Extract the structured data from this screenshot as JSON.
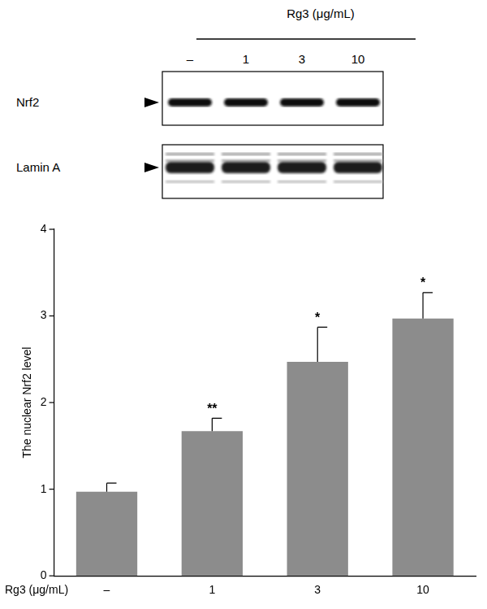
{
  "blot": {
    "treatment_label": "Rg3 (μg/mL)",
    "lanes": [
      "–",
      "1",
      "3",
      "10"
    ],
    "rows": [
      "Nrf2",
      "Lamin A"
    ]
  },
  "chart_data": {
    "type": "bar",
    "y_label": "The nuclear Nrf2 level",
    "x_label": "Rg3 (μg/mL)",
    "categories": [
      "–",
      "1",
      "3",
      "10"
    ],
    "values": [
      0.97,
      1.67,
      2.47,
      2.97
    ],
    "errors": [
      0.1,
      0.15,
      0.4,
      0.3
    ],
    "significance": [
      null,
      "**",
      "*",
      "*"
    ],
    "color": "#8c8c8c",
    "ylim": [
      0,
      4
    ],
    "yticks": [
      0,
      1,
      2,
      3,
      4
    ],
    "grid": false
  }
}
